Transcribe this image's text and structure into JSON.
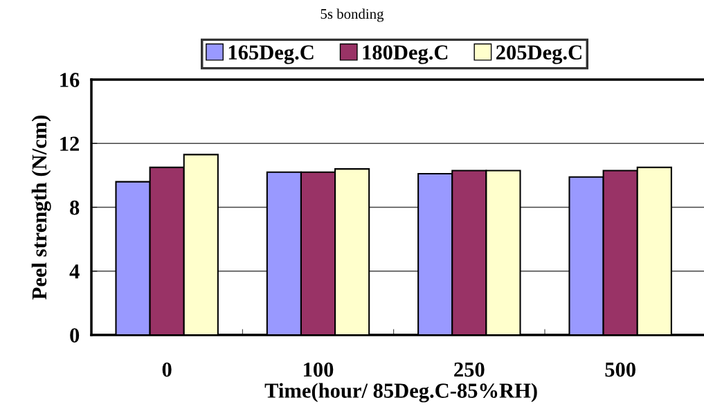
{
  "chart_data": {
    "type": "bar",
    "title": "5s bonding",
    "xlabel": "Time(hour/ 85Deg.C-85%RH)",
    "ylabel": "Peel strength (N/cm)",
    "categories": [
      "0",
      "100",
      "250",
      "500"
    ],
    "series": [
      {
        "name": "165Deg.C",
        "color": "#9999ff",
        "values": [
          9.6,
          10.2,
          10.1,
          9.9
        ]
      },
      {
        "name": "180Deg.C",
        "color": "#993366",
        "values": [
          10.5,
          10.2,
          10.3,
          10.3
        ]
      },
      {
        "name": "205Deg.C",
        "color": "#ffffcc",
        "values": [
          11.3,
          10.4,
          10.3,
          10.5
        ]
      }
    ],
    "ylim": [
      0,
      16
    ],
    "yticks": [
      0,
      4,
      8,
      12,
      16
    ],
    "grid": "y",
    "legend": "top"
  }
}
